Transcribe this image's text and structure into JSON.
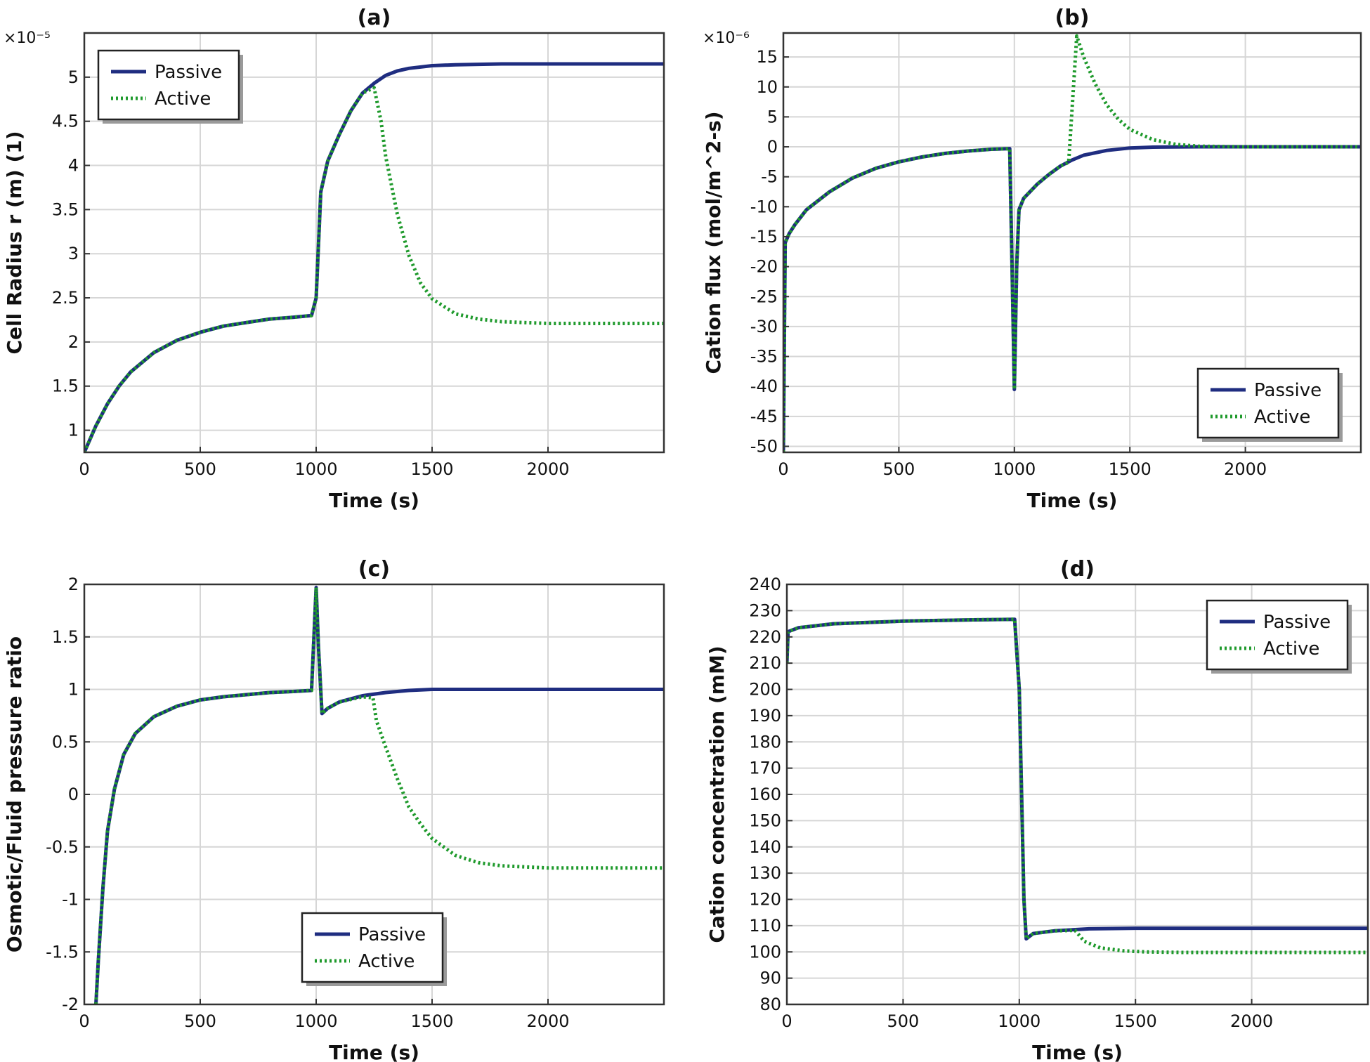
{
  "colors": {
    "passive": "#1f2d80",
    "active": "#1f9a2c",
    "grid": "#d6d6d6"
  },
  "chart_data": [
    {
      "id": "a",
      "type": "line",
      "title": "(a)",
      "xlabel": "Time (s)",
      "ylabel": "Cell Radius r (m) (1)",
      "multiplier": "×10⁻⁵",
      "xlim": [
        0,
        2500
      ],
      "ylim": [
        0.75,
        5.5
      ],
      "xticks": [
        0,
        500,
        1000,
        1500,
        2000
      ],
      "yticks": [
        1,
        1.5,
        2,
        2.5,
        3,
        3.5,
        4,
        4.5,
        5
      ],
      "legend_position": "top-left",
      "series": [
        {
          "name": "Passive",
          "style": "solid",
          "points": [
            [
              0,
              0.75
            ],
            [
              50,
              1.05
            ],
            [
              100,
              1.3
            ],
            [
              150,
              1.5
            ],
            [
              200,
              1.66
            ],
            [
              300,
              1.88
            ],
            [
              400,
              2.02
            ],
            [
              500,
              2.11
            ],
            [
              600,
              2.18
            ],
            [
              700,
              2.22
            ],
            [
              800,
              2.26
            ],
            [
              900,
              2.28
            ],
            [
              980,
              2.3
            ],
            [
              1000,
              2.5
            ],
            [
              1020,
              3.7
            ],
            [
              1050,
              4.05
            ],
            [
              1100,
              4.35
            ],
            [
              1150,
              4.62
            ],
            [
              1200,
              4.82
            ],
            [
              1250,
              4.93
            ],
            [
              1300,
              5.02
            ],
            [
              1350,
              5.07
            ],
            [
              1400,
              5.1
            ],
            [
              1500,
              5.13
            ],
            [
              1600,
              5.14
            ],
            [
              1800,
              5.15
            ],
            [
              2000,
              5.15
            ],
            [
              2500,
              5.15
            ]
          ]
        },
        {
          "name": "Active",
          "style": "dotted",
          "points": [
            [
              0,
              0.75
            ],
            [
              50,
              1.05
            ],
            [
              100,
              1.3
            ],
            [
              150,
              1.5
            ],
            [
              200,
              1.66
            ],
            [
              300,
              1.88
            ],
            [
              400,
              2.02
            ],
            [
              500,
              2.11
            ],
            [
              600,
              2.18
            ],
            [
              700,
              2.22
            ],
            [
              800,
              2.26
            ],
            [
              900,
              2.28
            ],
            [
              980,
              2.3
            ],
            [
              1000,
              2.5
            ],
            [
              1020,
              3.7
            ],
            [
              1050,
              4.05
            ],
            [
              1100,
              4.35
            ],
            [
              1150,
              4.62
            ],
            [
              1200,
              4.82
            ],
            [
              1250,
              4.88
            ],
            [
              1280,
              4.5
            ],
            [
              1300,
              4.1
            ],
            [
              1350,
              3.45
            ],
            [
              1400,
              2.98
            ],
            [
              1450,
              2.67
            ],
            [
              1500,
              2.49
            ],
            [
              1600,
              2.32
            ],
            [
              1700,
              2.26
            ],
            [
              1800,
              2.23
            ],
            [
              2000,
              2.21
            ],
            [
              2500,
              2.21
            ]
          ]
        }
      ]
    },
    {
      "id": "b",
      "type": "line",
      "title": "(b)",
      "xlabel": "Time (s)",
      "ylabel": "Cation flux (mol/m^2-s)",
      "multiplier": "×10⁻⁶",
      "xlim": [
        0,
        2500
      ],
      "ylim": [
        -51,
        19
      ],
      "xticks": [
        0,
        500,
        1000,
        1500,
        2000
      ],
      "yticks": [
        15,
        10,
        5,
        0,
        -5,
        -10,
        -15,
        -20,
        -25,
        -30,
        -35,
        -40,
        -45,
        -50
      ],
      "legend_position": "bottom-right",
      "series": [
        {
          "name": "Passive",
          "style": "solid",
          "points": [
            [
              0,
              -51
            ],
            [
              8,
              -16
            ],
            [
              25,
              -14.5
            ],
            [
              50,
              -13
            ],
            [
              100,
              -10.5
            ],
            [
              200,
              -7.5
            ],
            [
              300,
              -5.2
            ],
            [
              400,
              -3.6
            ],
            [
              500,
              -2.5
            ],
            [
              600,
              -1.7
            ],
            [
              700,
              -1.1
            ],
            [
              800,
              -0.7
            ],
            [
              900,
              -0.4
            ],
            [
              980,
              -0.3
            ],
            [
              990,
              -20
            ],
            [
              1000,
              -40.5
            ],
            [
              1010,
              -20
            ],
            [
              1020,
              -10.5
            ],
            [
              1040,
              -8.6
            ],
            [
              1100,
              -6.2
            ],
            [
              1150,
              -4.6
            ],
            [
              1200,
              -3.2
            ],
            [
              1250,
              -2.2
            ],
            [
              1300,
              -1.4
            ],
            [
              1400,
              -0.6
            ],
            [
              1500,
              -0.2
            ],
            [
              1600,
              -0.05
            ],
            [
              1800,
              0
            ],
            [
              2500,
              0
            ]
          ]
        },
        {
          "name": "Active",
          "style": "dotted",
          "points": [
            [
              0,
              -51
            ],
            [
              8,
              -16
            ],
            [
              25,
              -14.5
            ],
            [
              50,
              -13
            ],
            [
              100,
              -10.5
            ],
            [
              200,
              -7.5
            ],
            [
              300,
              -5.2
            ],
            [
              400,
              -3.6
            ],
            [
              500,
              -2.5
            ],
            [
              600,
              -1.7
            ],
            [
              700,
              -1.1
            ],
            [
              800,
              -0.7
            ],
            [
              900,
              -0.4
            ],
            [
              980,
              -0.3
            ],
            [
              990,
              -20
            ],
            [
              1000,
              -40.5
            ],
            [
              1010,
              -20
            ],
            [
              1020,
              -10.5
            ],
            [
              1040,
              -8.6
            ],
            [
              1100,
              -6.2
            ],
            [
              1150,
              -4.6
            ],
            [
              1200,
              -3.2
            ],
            [
              1235,
              -2.6
            ],
            [
              1270,
              18.5
            ],
            [
              1300,
              15
            ],
            [
              1350,
              10.5
            ],
            [
              1400,
              7
            ],
            [
              1450,
              4.6
            ],
            [
              1500,
              2.9
            ],
            [
              1600,
              1.2
            ],
            [
              1700,
              0.4
            ],
            [
              1800,
              0.1
            ],
            [
              2000,
              0
            ],
            [
              2500,
              0
            ]
          ]
        }
      ]
    },
    {
      "id": "c",
      "type": "line",
      "title": "(c)",
      "xlabel": "Time (s)",
      "ylabel": "Osmotic/Fluid pressure ratio",
      "multiplier": "",
      "xlim": [
        0,
        2500
      ],
      "ylim": [
        -2,
        2
      ],
      "xticks": [
        0,
        500,
        1000,
        1500,
        2000
      ],
      "yticks": [
        2,
        1.5,
        1,
        0.5,
        0,
        -0.5,
        -1,
        -1.5,
        -2
      ],
      "legend_position": "bottom-center",
      "series": [
        {
          "name": "Passive",
          "style": "solid",
          "points": [
            [
              50,
              -2
            ],
            [
              60,
              -1.6
            ],
            [
              80,
              -0.9
            ],
            [
              100,
              -0.35
            ],
            [
              130,
              0.05
            ],
            [
              170,
              0.38
            ],
            [
              220,
              0.58
            ],
            [
              300,
              0.74
            ],
            [
              400,
              0.84
            ],
            [
              500,
              0.9
            ],
            [
              600,
              0.93
            ],
            [
              700,
              0.95
            ],
            [
              800,
              0.97
            ],
            [
              900,
              0.98
            ],
            [
              980,
              0.99
            ],
            [
              1000,
              1.97
            ],
            [
              1010,
              1.4
            ],
            [
              1025,
              0.77
            ],
            [
              1050,
              0.82
            ],
            [
              1100,
              0.88
            ],
            [
              1200,
              0.94
            ],
            [
              1300,
              0.97
            ],
            [
              1400,
              0.99
            ],
            [
              1500,
              1
            ],
            [
              2500,
              1
            ]
          ]
        },
        {
          "name": "Active",
          "style": "dotted",
          "points": [
            [
              50,
              -2
            ],
            [
              60,
              -1.6
            ],
            [
              80,
              -0.9
            ],
            [
              100,
              -0.35
            ],
            [
              130,
              0.05
            ],
            [
              170,
              0.38
            ],
            [
              220,
              0.58
            ],
            [
              300,
              0.74
            ],
            [
              400,
              0.84
            ],
            [
              500,
              0.9
            ],
            [
              600,
              0.93
            ],
            [
              700,
              0.95
            ],
            [
              800,
              0.97
            ],
            [
              900,
              0.98
            ],
            [
              980,
              0.99
            ],
            [
              1000,
              1.97
            ],
            [
              1010,
              1.4
            ],
            [
              1025,
              0.77
            ],
            [
              1050,
              0.82
            ],
            [
              1100,
              0.88
            ],
            [
              1200,
              0.93
            ],
            [
              1245,
              0.92
            ],
            [
              1260,
              0.7
            ],
            [
              1300,
              0.45
            ],
            [
              1350,
              0.15
            ],
            [
              1400,
              -0.12
            ],
            [
              1450,
              -0.28
            ],
            [
              1500,
              -0.42
            ],
            [
              1600,
              -0.58
            ],
            [
              1700,
              -0.65
            ],
            [
              1800,
              -0.68
            ],
            [
              2000,
              -0.7
            ],
            [
              2500,
              -0.7
            ]
          ]
        }
      ]
    },
    {
      "id": "d",
      "type": "line",
      "title": "(d)",
      "xlabel": "Time (s)",
      "ylabel": "Cation concentration (mM)",
      "multiplier": "",
      "xlim": [
        0,
        2500
      ],
      "ylim": [
        80,
        240
      ],
      "xticks": [
        0,
        500,
        1000,
        1500,
        2000
      ],
      "yticks": [
        240,
        230,
        220,
        210,
        200,
        190,
        180,
        170,
        160,
        150,
        140,
        130,
        120,
        110,
        100,
        90,
        80
      ],
      "legend_position": "top-right",
      "series": [
        {
          "name": "Passive",
          "style": "solid",
          "points": [
            [
              0,
              210
            ],
            [
              5,
              222
            ],
            [
              50,
              223.5
            ],
            [
              200,
              225
            ],
            [
              500,
              226
            ],
            [
              800,
              226.5
            ],
            [
              980,
              226.7
            ],
            [
              1000,
              200
            ],
            [
              1020,
              120
            ],
            [
              1030,
              105
            ],
            [
              1060,
              107
            ],
            [
              1150,
              108
            ],
            [
              1300,
              108.8
            ],
            [
              1500,
              109
            ],
            [
              2500,
              109
            ]
          ]
        },
        {
          "name": "Active",
          "style": "dotted",
          "points": [
            [
              0,
              210
            ],
            [
              5,
              222
            ],
            [
              50,
              223.5
            ],
            [
              200,
              225
            ],
            [
              500,
              226
            ],
            [
              800,
              226.5
            ],
            [
              980,
              226.7
            ],
            [
              1000,
              200
            ],
            [
              1020,
              120
            ],
            [
              1030,
              105
            ],
            [
              1060,
              107
            ],
            [
              1150,
              108
            ],
            [
              1240,
              108.2
            ],
            [
              1280,
              104
            ],
            [
              1350,
              101.5
            ],
            [
              1450,
              100.4
            ],
            [
              1550,
              100
            ],
            [
              1700,
              99.8
            ],
            [
              2500,
              99.8
            ]
          ]
        }
      ]
    }
  ]
}
